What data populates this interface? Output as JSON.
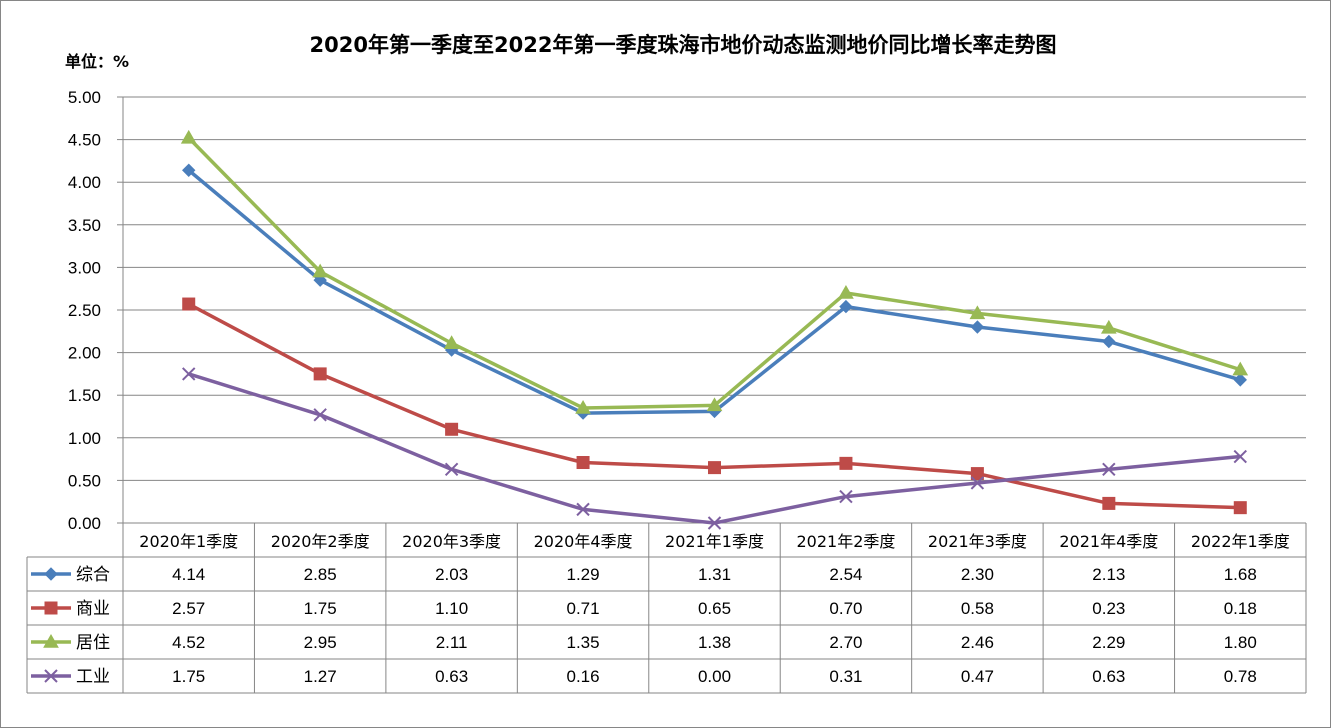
{
  "chart_data": {
    "type": "line",
    "title": "2020年第一季度至2022年第一季度珠海市地价动态监测地价同比增长率走势图",
    "unit_label": "单位：%",
    "categories": [
      "2020年1季度",
      "2020年2季度",
      "2020年3季度",
      "2020年4季度",
      "2021年1季度",
      "2021年2季度",
      "2021年3季度",
      "2021年4季度",
      "2022年1季度"
    ],
    "y_ticks": [
      "0.00",
      "0.50",
      "1.00",
      "1.50",
      "2.00",
      "2.50",
      "3.00",
      "3.50",
      "4.00",
      "4.50",
      "5.00"
    ],
    "ylim": [
      0,
      5
    ],
    "grid": true,
    "legend": "data-table",
    "series": [
      {
        "name": "综合",
        "color": "#4a7ebb",
        "marker": "diamond",
        "values": [
          4.14,
          2.85,
          2.03,
          1.29,
          1.31,
          2.54,
          2.3,
          2.13,
          1.68
        ],
        "labels": [
          "4.14",
          "2.85",
          "2.03",
          "1.29",
          "1.31",
          "2.54",
          "2.30",
          "2.13",
          "1.68"
        ]
      },
      {
        "name": "商业",
        "color": "#be4b48",
        "marker": "square",
        "values": [
          2.57,
          1.75,
          1.1,
          0.71,
          0.65,
          0.7,
          0.58,
          0.23,
          0.18
        ],
        "labels": [
          "2.57",
          "1.75",
          "1.10",
          "0.71",
          "0.65",
          "0.70",
          "0.58",
          "0.23",
          "0.18"
        ]
      },
      {
        "name": "居住",
        "color": "#98b954",
        "marker": "triangle",
        "values": [
          4.52,
          2.95,
          2.11,
          1.35,
          1.38,
          2.7,
          2.46,
          2.29,
          1.8
        ],
        "labels": [
          "4.52",
          "2.95",
          "2.11",
          "1.35",
          "1.38",
          "2.70",
          "2.46",
          "2.29",
          "1.80"
        ]
      },
      {
        "name": "工业",
        "color": "#7d60a0",
        "marker": "x",
        "values": [
          1.75,
          1.27,
          0.63,
          0.16,
          0.0,
          0.31,
          0.47,
          0.63,
          0.78
        ],
        "labels": [
          "1.75",
          "1.27",
          "0.63",
          "0.16",
          "0.00",
          "0.31",
          "0.47",
          "0.63",
          "0.78"
        ]
      }
    ]
  }
}
